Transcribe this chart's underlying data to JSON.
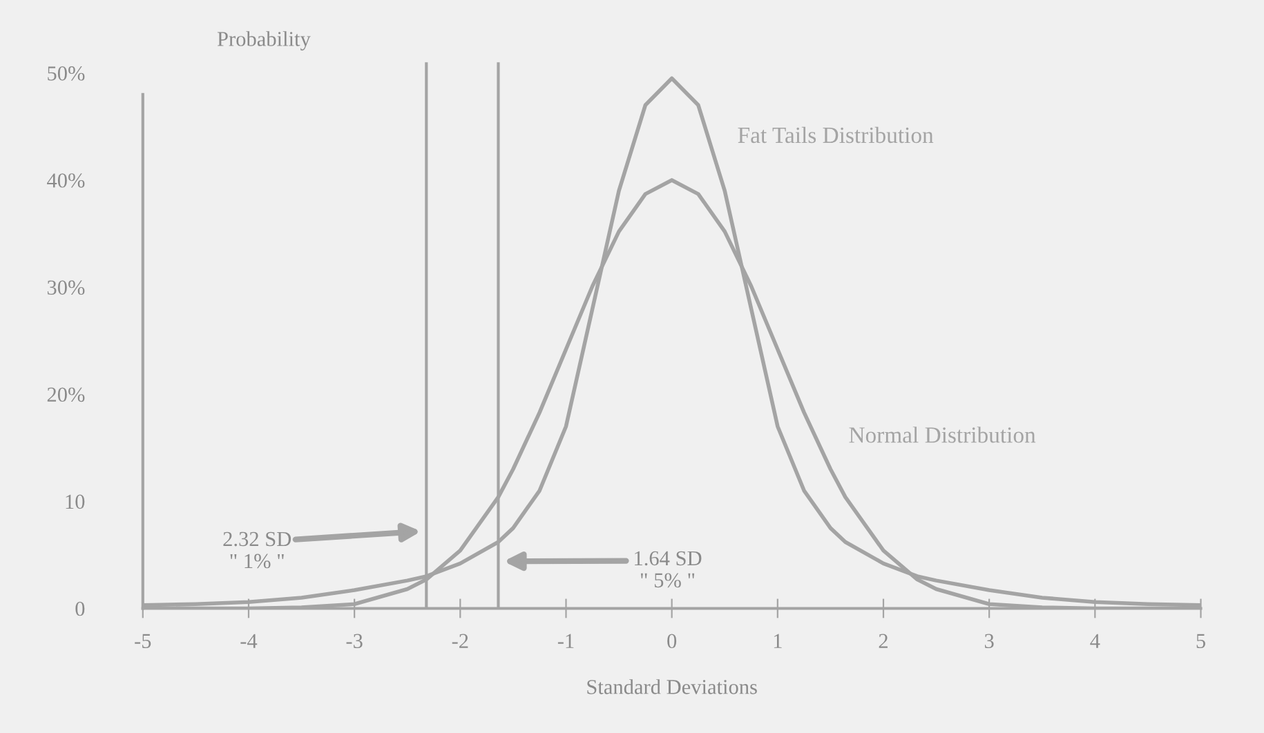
{
  "chart_data": {
    "type": "line",
    "xlabel": "Standard Deviations",
    "ylabel": "Probability",
    "x": [
      -5,
      -4.5,
      -4,
      -3.5,
      -3,
      -2.5,
      -2.32,
      -2,
      -1.64,
      -1.5,
      -1.25,
      -1,
      -0.75,
      -0.5,
      -0.25,
      0,
      0.25,
      0.5,
      0.75,
      1,
      1.25,
      1.5,
      1.64,
      2,
      2.32,
      2.5,
      3,
      3.5,
      4,
      4.5,
      5
    ],
    "series": [
      {
        "name": "Fat Tails Distribution",
        "color": "#a4a4a4",
        "values": [
          0.3,
          0.4,
          0.6,
          1.0,
          1.7,
          2.6,
          3.0,
          4.2,
          6.2,
          7.5,
          11,
          17,
          28,
          39,
          47,
          49.5,
          47,
          39,
          28,
          17,
          11,
          7.5,
          6.2,
          4.2,
          3.0,
          2.6,
          1.7,
          1.0,
          0.6,
          0.4,
          0.3
        ]
      },
      {
        "name": "Normal Distribution",
        "color": "#a4a4a4",
        "values": [
          0,
          0,
          0,
          0.1,
          0.4,
          1.8,
          2.7,
          5.4,
          10.4,
          13,
          18.3,
          24.2,
          30.1,
          35.2,
          38.7,
          40,
          38.7,
          35.2,
          30.1,
          24.2,
          18.3,
          13,
          10.4,
          5.4,
          2.7,
          1.8,
          0.4,
          0.1,
          0,
          0,
          0
        ]
      }
    ],
    "xlim": [
      -5,
      5
    ],
    "ylim": [
      0,
      51
    ],
    "xticks": [
      -5,
      -4,
      -3,
      -2,
      -1,
      0,
      1,
      2,
      3,
      4,
      5
    ],
    "yticks": [
      0,
      10,
      {
        "value": 20,
        "label": "20%"
      },
      {
        "value": 30,
        "label": "30%"
      },
      {
        "value": 40,
        "label": "40%"
      },
      {
        "value": 50,
        "label": "50%"
      }
    ],
    "ref_lines": [
      {
        "axis": "x",
        "value": -2.32,
        "label": "2.32 SD\n\" 1% \"",
        "color": "#a4a4a4"
      },
      {
        "axis": "x",
        "value": -1.64,
        "label": "1.64 SD\n\" 5% \"",
        "color": "#a4a4a4"
      }
    ],
    "grid": false,
    "legend": false,
    "marker": "none",
    "line_style": "solid"
  }
}
